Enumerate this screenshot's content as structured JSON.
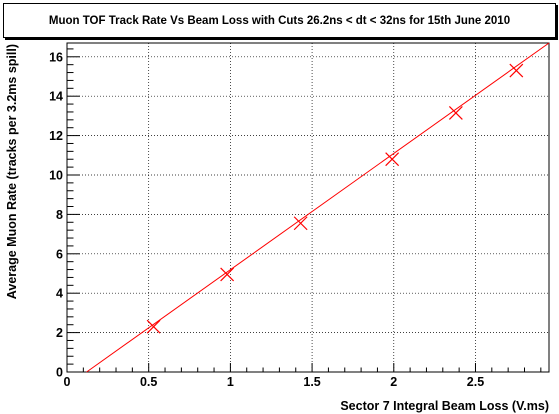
{
  "chart_data": {
    "type": "scatter",
    "title": "Muon TOF Track Rate Vs Beam Loss with Cuts 26.2ns < dt < 32ns for 15th June 2010",
    "xlabel": "Sector 7 Integral Beam Loss (V.ms)",
    "ylabel": "Average Muon Rate (tracks per 3.2ms spill)",
    "xlim": [
      0,
      2.95
    ],
    "ylim": [
      0,
      16.7
    ],
    "x_ticks": [
      0,
      0.5,
      1,
      1.5,
      2,
      2.5
    ],
    "x_tick_labels": [
      "0",
      "0.5",
      "1",
      "1.5",
      "2",
      "2.5"
    ],
    "y_ticks": [
      0,
      2,
      4,
      6,
      8,
      10,
      12,
      14,
      16
    ],
    "y_tick_labels": [
      "0",
      "2",
      "4",
      "6",
      "8",
      "10",
      "12",
      "14",
      "16"
    ],
    "grid": true,
    "marker_color": "#ff0000",
    "fit_line_color": "#ff0000",
    "points": [
      {
        "x": 0.53,
        "y": 2.3
      },
      {
        "x": 0.98,
        "y": 4.95
      },
      {
        "x": 1.43,
        "y": 7.55
      },
      {
        "x": 1.99,
        "y": 10.8
      },
      {
        "x": 2.38,
        "y": 13.15
      },
      {
        "x": 2.75,
        "y": 15.3
      }
    ],
    "fit_line": [
      {
        "x": 0.12,
        "y": 0.0
      },
      {
        "x": 2.95,
        "y": 16.7
      }
    ]
  }
}
